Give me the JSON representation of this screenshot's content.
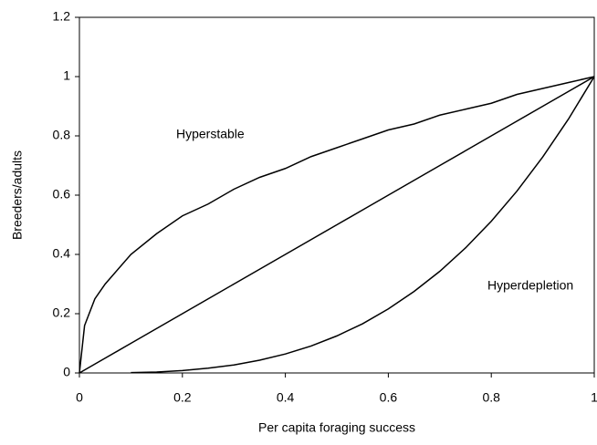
{
  "chart_data": {
    "type": "line",
    "x_label": "Per capita foraging success",
    "y_label": "Breeders/adults",
    "x": [
      0,
      0.01,
      0.03,
      0.05,
      0.1,
      0.15,
      0.2,
      0.25,
      0.3,
      0.35,
      0.4,
      0.45,
      0.5,
      0.55,
      0.6,
      0.65,
      0.7,
      0.75,
      0.8,
      0.85,
      0.9,
      0.95,
      1
    ],
    "series": [
      {
        "color": "#000000",
        "values": [
          0,
          0.16,
          0.25,
          0.3,
          0.4,
          0.47,
          0.53,
          0.57,
          0.62,
          0.66,
          0.69,
          0.73,
          0.76,
          0.79,
          0.82,
          0.84,
          0.87,
          0.89,
          0.91,
          0.94,
          0.96,
          0.98,
          1
        ]
      },
      {
        "color": "#000000",
        "values": [
          0,
          0.01,
          0.03,
          0.05,
          0.1,
          0.15,
          0.2,
          0.25,
          0.3,
          0.35,
          0.4,
          0.45,
          0.5,
          0.55,
          0.6,
          0.65,
          0.7,
          0.75,
          0.8,
          0.85,
          0.9,
          0.95,
          1
        ]
      },
      {
        "color": "#000000",
        "values": [
          null,
          null,
          null,
          null,
          0.001,
          0.003,
          0.008,
          0.016,
          0.027,
          0.043,
          0.064,
          0.091,
          0.125,
          0.166,
          0.216,
          0.275,
          0.343,
          0.422,
          0.512,
          0.614,
          0.729,
          0.857,
          1
        ]
      }
    ],
    "annotations": [
      "Hyperstable",
      "Hyperdepletion"
    ],
    "xlim": [
      0,
      1
    ],
    "xticks": [
      0,
      0.2,
      0.4,
      0.6,
      0.8,
      1
    ],
    "ylim": [
      0,
      1.2
    ],
    "yticks": [
      0,
      0.2,
      0.4,
      0.6,
      0.8,
      1,
      1.2
    ],
    "grid": false
  }
}
